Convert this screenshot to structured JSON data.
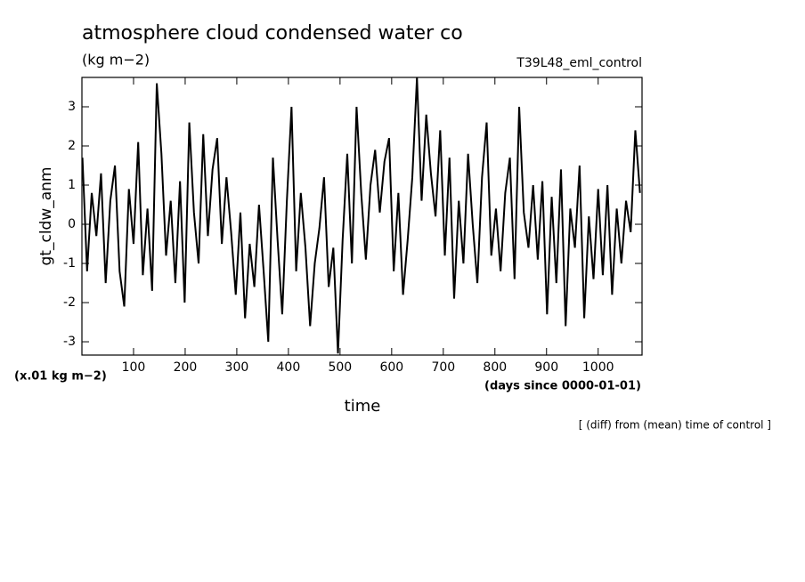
{
  "chart_data": {
    "type": "line",
    "title": "atmosphere cloud condensed water co",
    "subtitle": "(kg m−2)",
    "run_label": "T39L48_eml_control",
    "ylabel": "gt_cldw_anm",
    "xlabel": "time",
    "y_unit_label": "(x.01 kg m−2)",
    "x_unit_label": "(days since 0000-01-01)",
    "footnote": "[ (diff) from (mean) time of control ]",
    "xlim": [
      0,
      1085
    ],
    "ylim": [
      -3.34,
      3.75
    ],
    "xticks": [
      100,
      200,
      300,
      400,
      500,
      600,
      700,
      800,
      900,
      1000
    ],
    "yticks": [
      -3,
      -2,
      -1,
      0,
      1,
      2,
      3
    ],
    "color": "#000000",
    "x": [
      1,
      10,
      19,
      28,
      37,
      46,
      55,
      64,
      73,
      82,
      91,
      100,
      109,
      118,
      127,
      136,
      145,
      154,
      163,
      172,
      181,
      190,
      199,
      208,
      217,
      226,
      235,
      244,
      253,
      262,
      271,
      280,
      289,
      298,
      307,
      316,
      325,
      334,
      343,
      352,
      361,
      370,
      379,
      388,
      397,
      406,
      415,
      424,
      433,
      442,
      451,
      460,
      469,
      478,
      487,
      496,
      505,
      514,
      523,
      532,
      541,
      550,
      559,
      568,
      577,
      586,
      595,
      604,
      613,
      622,
      631,
      640,
      649,
      658,
      667,
      676,
      685,
      694,
      703,
      712,
      721,
      730,
      739,
      748,
      757,
      766,
      775,
      784,
      793,
      802,
      811,
      820,
      829,
      838,
      847,
      856,
      865,
      874,
      883,
      892,
      901,
      910,
      919,
      928,
      937,
      946,
      955,
      964,
      973,
      982,
      991,
      1000,
      1009,
      1018,
      1027,
      1036,
      1045,
      1054,
      1063,
      1072,
      1081
    ],
    "values": [
      1.7,
      -1.2,
      0.8,
      -0.3,
      1.3,
      -1.5,
      0.6,
      1.5,
      -1.2,
      -2.1,
      0.9,
      -0.5,
      2.1,
      -1.3,
      0.4,
      -1.7,
      3.6,
      1.8,
      -0.8,
      0.6,
      -1.5,
      1.1,
      -2.0,
      2.6,
      0.3,
      -1.0,
      2.3,
      -0.3,
      1.4,
      2.2,
      -0.5,
      1.2,
      -0.2,
      -1.8,
      0.3,
      -2.4,
      -0.5,
      -1.6,
      0.5,
      -1.2,
      -3.0,
      1.7,
      -0.4,
      -2.3,
      0.6,
      3.0,
      -1.2,
      0.8,
      -0.6,
      -2.6,
      -1.0,
      -0.1,
      1.2,
      -1.6,
      -0.6,
      -3.3,
      -0.4,
      1.8,
      -1.0,
      3.0,
      0.8,
      -0.9,
      1.0,
      1.9,
      0.3,
      1.6,
      2.2,
      -1.2,
      0.8,
      -1.8,
      -0.4,
      1.2,
      3.75,
      0.6,
      2.8,
      1.3,
      0.2,
      2.4,
      -0.8,
      1.7,
      -1.9,
      0.6,
      -1.0,
      1.8,
      0.0,
      -1.5,
      1.2,
      2.6,
      -0.8,
      0.4,
      -1.2,
      0.8,
      1.7,
      -1.4,
      3.0,
      0.3,
      -0.6,
      1.0,
      -0.9,
      1.1,
      -2.3,
      0.7,
      -1.5,
      1.4,
      -2.6,
      0.4,
      -0.6,
      1.5,
      -2.4,
      0.2,
      -1.4,
      0.9,
      -1.3,
      1.0,
      -1.8,
      0.4,
      -1.0,
      0.6,
      -0.2,
      2.4,
      0.8
    ]
  }
}
